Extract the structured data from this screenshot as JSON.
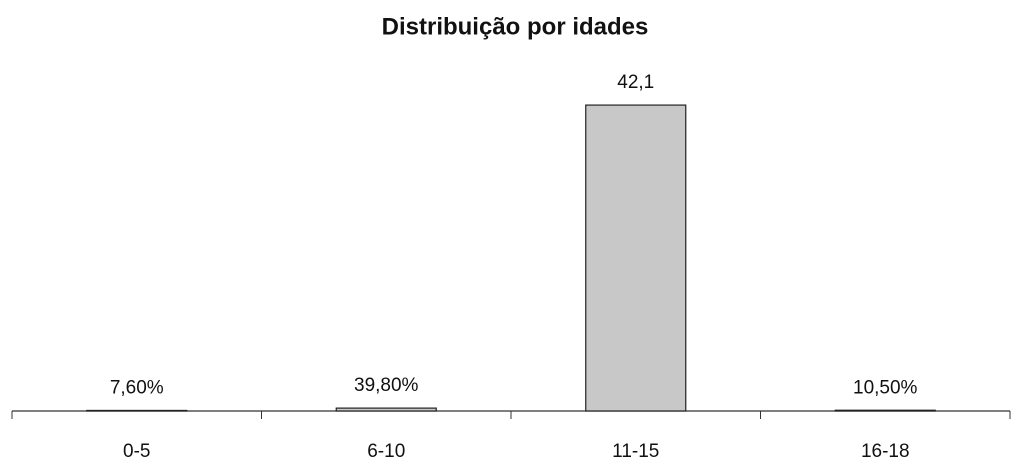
{
  "chart_data": {
    "type": "bar",
    "title": "Distribuição por idades",
    "categories": [
      "0-5",
      "6-10",
      "11-15",
      "16-18"
    ],
    "values": [
      0.076,
      0.398,
      42.1,
      0.105
    ],
    "value_labels": [
      "7,60%",
      "39,80%",
      "42,1",
      "10,50%"
    ],
    "color": "#c8c8c8",
    "ylim": [
      0,
      45
    ]
  }
}
